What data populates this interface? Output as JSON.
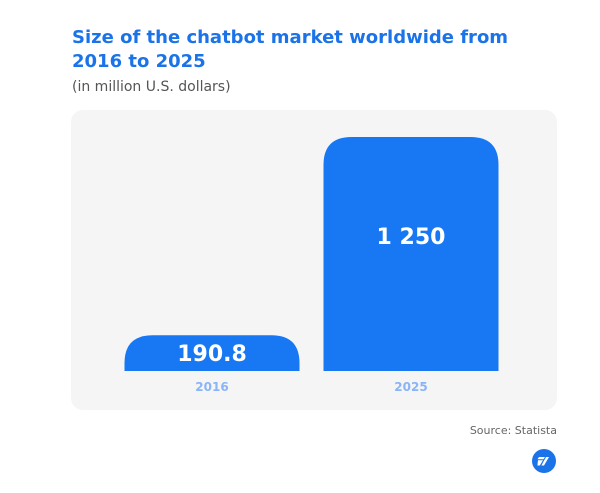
{
  "header": {
    "title": "Size of the chatbot market worldwide from 2016 to 2025",
    "subtitle": "(in million U.S. dollars)"
  },
  "footer": {
    "source": "Source: Statista",
    "logo_icon": "brand-logo-icon"
  },
  "colors": {
    "bar": "#1877f2",
    "value_text": "#ffffff",
    "tick_text": "#8ab4f8",
    "panel_bg": "#f5f5f5",
    "title": "#1a73e8"
  },
  "chart_data": {
    "type": "bar",
    "title": "Size of the chatbot market worldwide from 2016 to 2025",
    "subtitle": "(in million U.S. dollars)",
    "categories": [
      "2016",
      "2025"
    ],
    "values": [
      190.8,
      1250
    ],
    "value_labels": [
      "190.8",
      "1 250"
    ],
    "xlabel": "",
    "ylabel": "",
    "ylim": [
      0,
      1250
    ],
    "grid": false,
    "legend": "none"
  }
}
